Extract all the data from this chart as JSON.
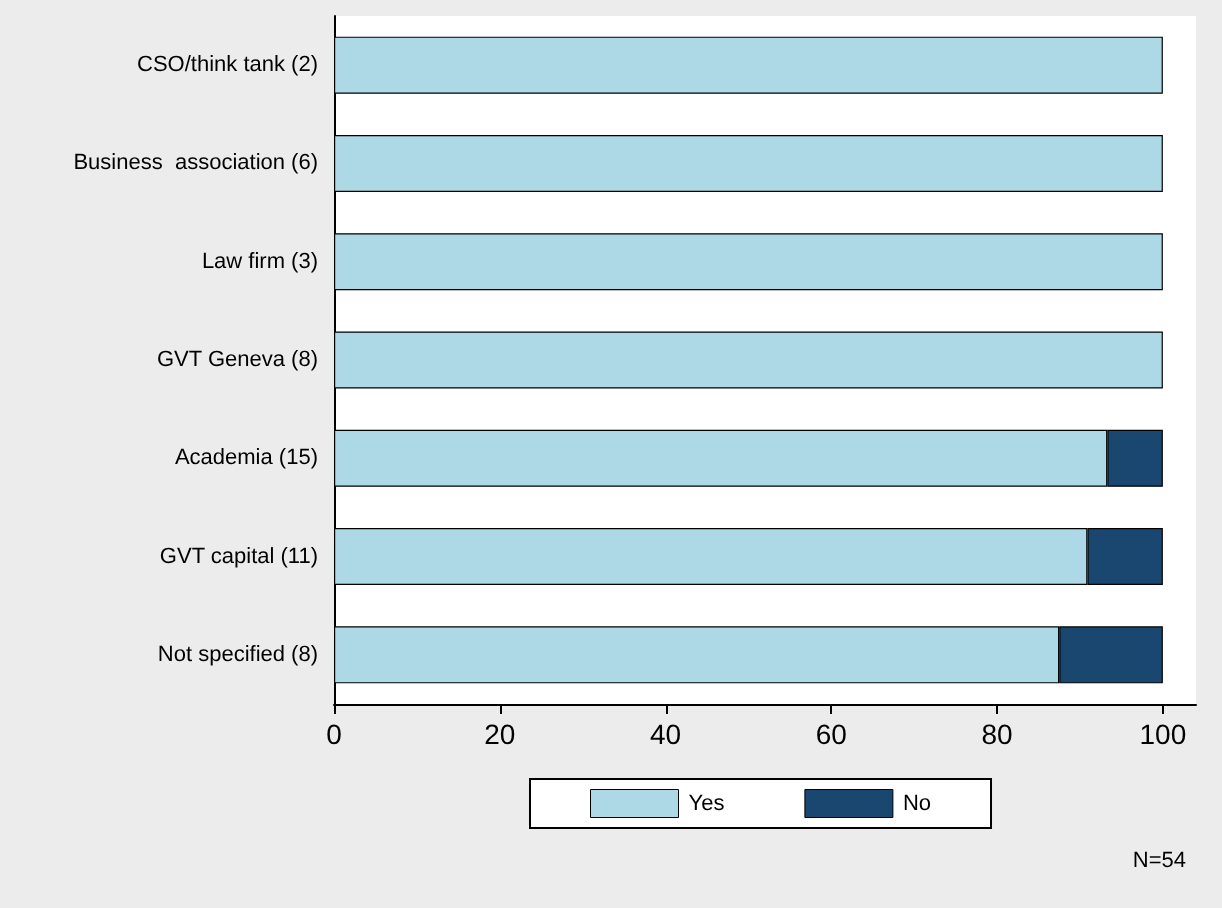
{
  "chart_data": {
    "type": "bar",
    "orientation": "horizontal",
    "stacked": true,
    "categories": [
      "CSO/think tank (2)",
      "Business  association (6)",
      "Law firm (3)",
      "GVT Geneva (8)",
      "Academia (15)",
      "GVT capital (11)",
      "Not specified (8)"
    ],
    "series": [
      {
        "name": "Yes",
        "color": "#add8e6",
        "values": [
          100,
          100,
          100,
          100,
          93.3,
          90.9,
          87.5
        ]
      },
      {
        "name": "No",
        "color": "#1a476f",
        "values": [
          0,
          0,
          0,
          0,
          6.7,
          9.1,
          12.5
        ]
      }
    ],
    "xlim": [
      0,
      104
    ],
    "xticks": [
      0,
      20,
      40,
      60,
      80,
      100
    ],
    "grid": false,
    "legend": "bottom",
    "annotations": [
      "N=54"
    ]
  }
}
